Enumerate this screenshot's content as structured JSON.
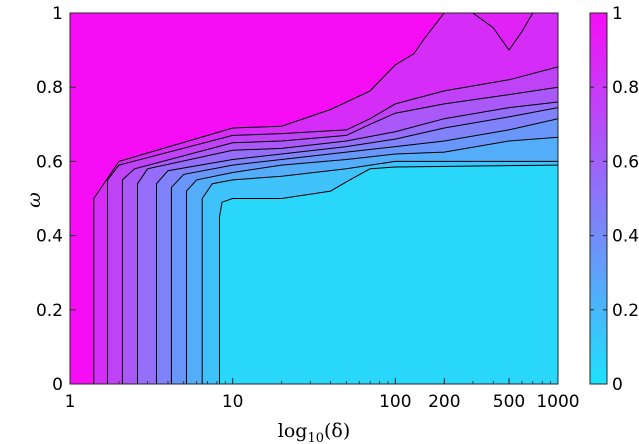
{
  "chart_data": {
    "type": "contour",
    "xlabel": "log10(δ)",
    "xlabel_base": "log",
    "xlabel_sub": "10",
    "xlabel_arg": "(δ)",
    "ylabel": "ω",
    "x_scale": "log",
    "xlim": [
      1,
      1000
    ],
    "ylim": [
      0,
      1
    ],
    "x_ticks": [
      1,
      10,
      100,
      200,
      500,
      1000
    ],
    "x_tick_labels": [
      "1",
      "10",
      "100",
      "200",
      "500",
      "1000"
    ],
    "y_ticks": [
      0,
      0.2,
      0.4,
      0.6,
      0.8,
      1
    ],
    "y_tick_labels": [
      "0",
      "0.2",
      "0.4",
      "0.6",
      "0.8",
      "1"
    ],
    "colorbar": {
      "range": [
        0,
        1
      ],
      "ticks": [
        0,
        0.2,
        0.4,
        0.6,
        0.8,
        1
      ],
      "tick_labels": [
        "0",
        "0.2",
        "0.4",
        "0.6",
        "0.8",
        "1"
      ],
      "colormap": "cool",
      "color_low": "#1de2fa",
      "color_high": "#f60df6"
    },
    "levels": [
      0.1,
      0.2,
      0.3,
      0.4,
      0.5,
      0.6,
      0.7,
      0.8,
      0.9
    ],
    "contours": [
      {
        "level": 0.1,
        "points": [
          [
            8.3,
            0
          ],
          [
            8.3,
            0.45
          ],
          [
            8.6,
            0.49
          ],
          [
            10,
            0.5
          ],
          [
            20,
            0.5
          ],
          [
            40,
            0.52
          ],
          [
            50,
            0.545
          ],
          [
            70,
            0.58
          ],
          [
            100,
            0.585
          ],
          [
            1000,
            0.59
          ]
        ]
      },
      {
        "level": 0.2,
        "points": [
          [
            6.5,
            0
          ],
          [
            6.5,
            0.5
          ],
          [
            7.5,
            0.54
          ],
          [
            10,
            0.55
          ],
          [
            20,
            0.56
          ],
          [
            50,
            0.58
          ],
          [
            100,
            0.6
          ],
          [
            1000,
            0.6
          ]
        ]
      },
      {
        "level": 0.3,
        "points": [
          [
            5.2,
            0
          ],
          [
            5.2,
            0.52
          ],
          [
            6,
            0.55
          ],
          [
            10,
            0.57
          ],
          [
            20,
            0.59
          ],
          [
            50,
            0.605
          ],
          [
            100,
            0.62
          ],
          [
            200,
            0.625
          ],
          [
            500,
            0.655
          ],
          [
            1000,
            0.665
          ]
        ]
      },
      {
        "level": 0.4,
        "points": [
          [
            4.2,
            0
          ],
          [
            4.2,
            0.53
          ],
          [
            5,
            0.565
          ],
          [
            10,
            0.59
          ],
          [
            20,
            0.605
          ],
          [
            50,
            0.625
          ],
          [
            100,
            0.64
          ],
          [
            200,
            0.655
          ],
          [
            500,
            0.685
          ],
          [
            1000,
            0.715
          ]
        ]
      },
      {
        "level": 0.5,
        "points": [
          [
            3.4,
            0
          ],
          [
            3.4,
            0.54
          ],
          [
            4,
            0.575
          ],
          [
            10,
            0.605
          ],
          [
            20,
            0.62
          ],
          [
            50,
            0.64
          ],
          [
            100,
            0.66
          ],
          [
            200,
            0.69
          ],
          [
            500,
            0.72
          ],
          [
            1000,
            0.745
          ]
        ]
      },
      {
        "level": 0.6,
        "points": [
          [
            2.6,
            0
          ],
          [
            2.6,
            0.54
          ],
          [
            3,
            0.58
          ],
          [
            10,
            0.63
          ],
          [
            20,
            0.635
          ],
          [
            50,
            0.655
          ],
          [
            100,
            0.68
          ],
          [
            200,
            0.715
          ],
          [
            500,
            0.745
          ],
          [
            1000,
            0.76
          ]
        ]
      },
      {
        "level": 0.7,
        "points": [
          [
            2.1,
            0
          ],
          [
            2.1,
            0.55
          ],
          [
            2.5,
            0.58
          ],
          [
            10,
            0.65
          ],
          [
            20,
            0.655
          ],
          [
            50,
            0.67
          ],
          [
            70,
            0.7
          ],
          [
            100,
            0.73
          ],
          [
            200,
            0.755
          ],
          [
            500,
            0.78
          ],
          [
            1000,
            0.8
          ]
        ]
      },
      {
        "level": 0.8,
        "points": [
          [
            1.7,
            0
          ],
          [
            1.7,
            0.55
          ],
          [
            2,
            0.59
          ],
          [
            10,
            0.67
          ],
          [
            20,
            0.675
          ],
          [
            50,
            0.685
          ],
          [
            70,
            0.715
          ],
          [
            100,
            0.755
          ],
          [
            200,
            0.79
          ],
          [
            500,
            0.82
          ],
          [
            1000,
            0.855
          ]
        ]
      },
      {
        "level": 0.9,
        "points": [
          [
            1.4,
            0
          ],
          [
            1.4,
            0.5
          ],
          [
            2,
            0.6
          ],
          [
            10,
            0.69
          ],
          [
            20,
            0.695
          ],
          [
            40,
            0.74
          ],
          [
            70,
            0.79
          ],
          [
            100,
            0.86
          ],
          [
            130,
            0.89
          ],
          [
            150,
            0.93
          ],
          [
            200,
            1
          ]
        ]
      },
      {
        "level": 0.95,
        "points": [
          [
            300,
            1
          ],
          [
            400,
            0.96
          ],
          [
            500,
            0.9
          ],
          [
            600,
            0.95
          ],
          [
            700,
            1
          ]
        ]
      }
    ]
  }
}
